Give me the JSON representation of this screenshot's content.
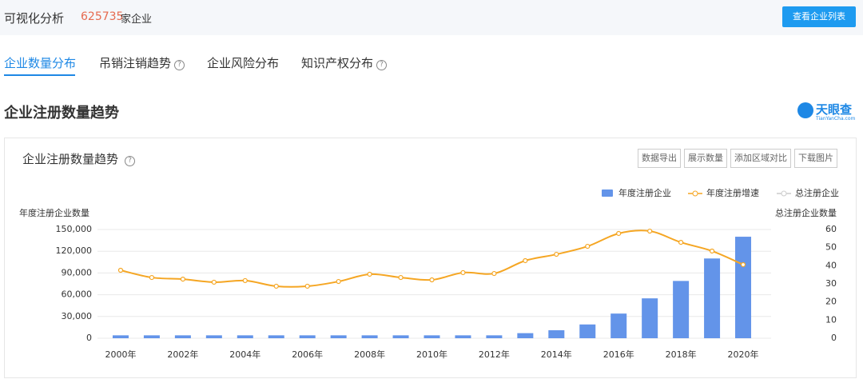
{
  "header": {
    "title": "可视化分析",
    "count": "625735",
    "count_suffix": "家企业",
    "button": "查看企业列表"
  },
  "tabs": [
    "企业数量分布",
    "吊销注销趋势",
    "企业风险分布",
    "知识产权分布"
  ],
  "section_title": "企业注册数量趋势",
  "logo": {
    "name": "天眼查",
    "url": "TianYanCha.com"
  },
  "card": {
    "title": "企业注册数量趋势",
    "buttons": [
      "数据导出",
      "展示数量",
      "添加区域对比",
      "下载图片"
    ]
  },
  "chart_data": {
    "type": "bar-line",
    "y_label": "年度注册企业数量",
    "y2_label": "总注册企业数量",
    "categories": [
      "2000年",
      null,
      "2002年",
      null,
      "2004年",
      null,
      "2006年",
      null,
      "2008年",
      null,
      "2010年",
      null,
      "2012年",
      null,
      "2014年",
      null,
      "2016年",
      null,
      "2018年",
      null,
      "2020年"
    ],
    "series": [
      {
        "name": "年度注册企业",
        "type": "bar",
        "color": "#6394e9",
        "values": [
          4000,
          4000,
          4000,
          4000,
          4000,
          4000,
          4000,
          4000,
          4000,
          4000,
          4000,
          4000,
          4000,
          7000,
          11000,
          19000,
          34000,
          55000,
          79000,
          110000,
          140000
        ]
      },
      {
        "name": "年度注册增速",
        "type": "line",
        "axis": "y2",
        "color": "#f5a623",
        "values": [
          37.5,
          33.5,
          32.6,
          30.9,
          31.8,
          28.7,
          28.7,
          31.3,
          35.3,
          33.5,
          32.2,
          36.2,
          35.7,
          42.8,
          46.3,
          50.7,
          57.8,
          59.1,
          52.9,
          48.1,
          40.6
        ]
      }
    ],
    "inactive_legend": {
      "name": "总注册企业",
      "color": "#cccccc"
    },
    "ylim": [
      0,
      150000
    ],
    "yticks": [
      0,
      {
        "value": 30000,
        "label": "30,000"
      },
      {
        "value": 60000,
        "label": "60,000"
      },
      {
        "value": 90000,
        "label": "90,000"
      },
      {
        "value": 120000,
        "label": "120,000"
      },
      {
        "value": 150000,
        "label": "150,000"
      }
    ],
    "y2lim": [
      0,
      60
    ],
    "y2ticks": [
      0,
      10,
      20,
      30,
      40,
      50,
      60
    ],
    "grid": true,
    "legend": "top-right"
  }
}
